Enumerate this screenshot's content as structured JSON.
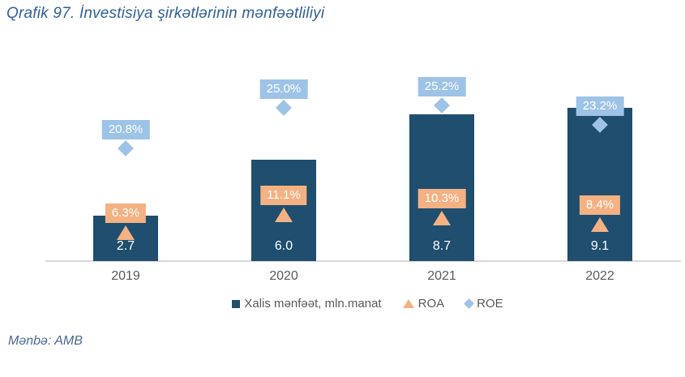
{
  "title": "Qrafik 97. İnvestisiya şirkətlərinin mənfəətliliyi",
  "source": "Mənbə: AMB",
  "legend": [
    {
      "label": "Xalis mənfəət, mln.manat",
      "marker": "square",
      "color": "#1F4E6E"
    },
    {
      "label": "ROA",
      "marker": "triangle",
      "color": "#F4B183"
    },
    {
      "label": "ROE",
      "marker": "diamond",
      "color": "#9DC3E6"
    }
  ],
  "colors": {
    "bar": "#1F4E6E",
    "roa": "#F4B183",
    "roe": "#9DC3E6",
    "axis_line": "#D9D9D9",
    "axis_text": "#595959",
    "title_text": "#2F5F99",
    "source_text": "#4A6894",
    "label_text": "#FFFFFF"
  },
  "chart_data": {
    "type": "bar",
    "title": "Qrafik 97. İnvestisiya şirkətlərinin mənfəətliliyi",
    "categories": [
      "2019",
      "2020",
      "2021",
      "2022"
    ],
    "series": [
      {
        "name": "Xalis mənfəət, mln.manat",
        "type": "bar",
        "values": [
          2.7,
          6.0,
          8.7,
          9.1
        ],
        "labels": [
          "2.7",
          "6.0",
          "8.7",
          "9.1"
        ]
      },
      {
        "name": "ROA",
        "type": "scatter",
        "marker": "triangle",
        "values": [
          6.3,
          11.1,
          10.3,
          8.4
        ],
        "labels": [
          "6.3%",
          "11.1%",
          "10.3%",
          "8.4%"
        ]
      },
      {
        "name": "ROE",
        "type": "scatter",
        "marker": "diamond",
        "values": [
          20.8,
          25.0,
          25.2,
          23.2
        ],
        "labels": [
          "20.8%",
          "25.0%",
          "25.2%",
          "23.2%"
        ]
      }
    ],
    "xlabel": "",
    "ylabel": "",
    "grid": false,
    "legend_position": "bottom",
    "source": "Mənbə: AMB"
  }
}
